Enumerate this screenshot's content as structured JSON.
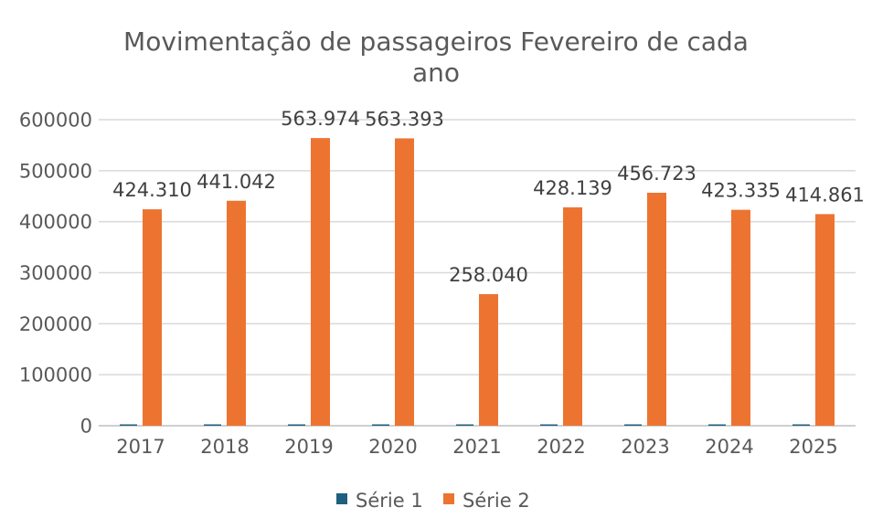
{
  "chart_data": {
    "type": "bar",
    "title_lines": [
      "Movimentação de passageiros Fevereiro de cada",
      "ano"
    ],
    "categories": [
      "2017",
      "2018",
      "2019",
      "2020",
      "2021",
      "2022",
      "2023",
      "2024",
      "2025"
    ],
    "series": [
      {
        "name": "Série 1",
        "color": "#1f5f7f",
        "values": [
          0,
          0,
          0,
          0,
          0,
          0,
          0,
          0,
          0
        ]
      },
      {
        "name": "Série 2",
        "color": "#ed7430",
        "values": [
          424310,
          441042,
          563974,
          563393,
          258040,
          428139,
          456723,
          423335,
          414861
        ],
        "data_labels": [
          "424.310",
          "441.042",
          "563.974",
          "563.393",
          "258.040",
          "428.139",
          "456.723",
          "423.335",
          "414.861"
        ]
      }
    ],
    "y_ticks": [
      "0",
      "100000",
      "200000",
      "300000",
      "400000",
      "500000",
      "600000"
    ],
    "ylim": [
      0,
      600000
    ],
    "xlabel": "",
    "ylabel": "",
    "grid": true,
    "legend_position": "bottom"
  }
}
